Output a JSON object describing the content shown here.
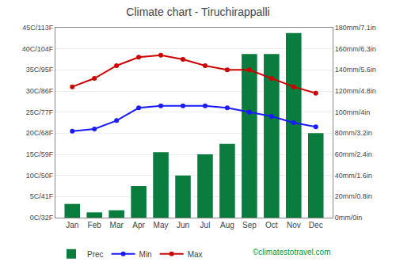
{
  "chart_data": {
    "type": "bar",
    "title": "Climate chart - Tiruchirappalli",
    "categories": [
      "Jan",
      "Feb",
      "Mar",
      "Apr",
      "May",
      "Jun",
      "Jul",
      "Aug",
      "Sep",
      "Oct",
      "Nov",
      "Dec"
    ],
    "series": [
      {
        "name": "Prec",
        "type": "bar",
        "axis": "y2",
        "color": "#0a7c3e",
        "values": [
          13,
          5,
          7,
          30,
          62,
          40,
          60,
          70,
          155,
          155,
          175,
          80
        ]
      },
      {
        "name": "Min",
        "type": "line",
        "color": "#1a1aff",
        "marker": "circle",
        "values": [
          20.5,
          21,
          23,
          26,
          26.5,
          26.5,
          26.5,
          26,
          25,
          24,
          22.5,
          21.5
        ]
      },
      {
        "name": "Max",
        "type": "line",
        "color": "#cc0000",
        "marker": "circle",
        "values": [
          31,
          33,
          36,
          38,
          38.5,
          37.5,
          36,
          35,
          35,
          33,
          31,
          29.5
        ]
      }
    ],
    "ylim": [
      0,
      45
    ],
    "yticks": [
      {
        "value": 0,
        "label": "0C/32F"
      },
      {
        "value": 5,
        "label": "5C/41F"
      },
      {
        "value": 10,
        "label": "10C/50F"
      },
      {
        "value": 15,
        "label": "15C/59F"
      },
      {
        "value": 20,
        "label": "20C/68F"
      },
      {
        "value": 25,
        "label": "25C/77F"
      },
      {
        "value": 30,
        "label": "30C/86F"
      },
      {
        "value": 35,
        "label": "35C/95F"
      },
      {
        "value": 40,
        "label": "40C/104F"
      },
      {
        "value": 45,
        "label": "45C/113F"
      }
    ],
    "y2lim": [
      0,
      180
    ],
    "y2ticks": [
      {
        "value": 0,
        "label": "0mm/0in"
      },
      {
        "value": 20,
        "label": "20mm/0.8in"
      },
      {
        "value": 40,
        "label": "40mm/1.6in"
      },
      {
        "value": 60,
        "label": "60mm/2.4in"
      },
      {
        "value": 80,
        "label": "80mm/3.2in"
      },
      {
        "value": 100,
        "label": "100mm/4in"
      },
      {
        "value": 120,
        "label": "120mm/4.8in"
      },
      {
        "value": 140,
        "label": "140mm/5.6in"
      },
      {
        "value": 160,
        "label": "160mm/6.3in"
      },
      {
        "value": 180,
        "label": "180mm/7.1in"
      }
    ],
    "grid": true,
    "legend": "bottom",
    "annotations": [
      {
        "text": "©climatestotravel.com",
        "color": "#009933"
      }
    ]
  }
}
